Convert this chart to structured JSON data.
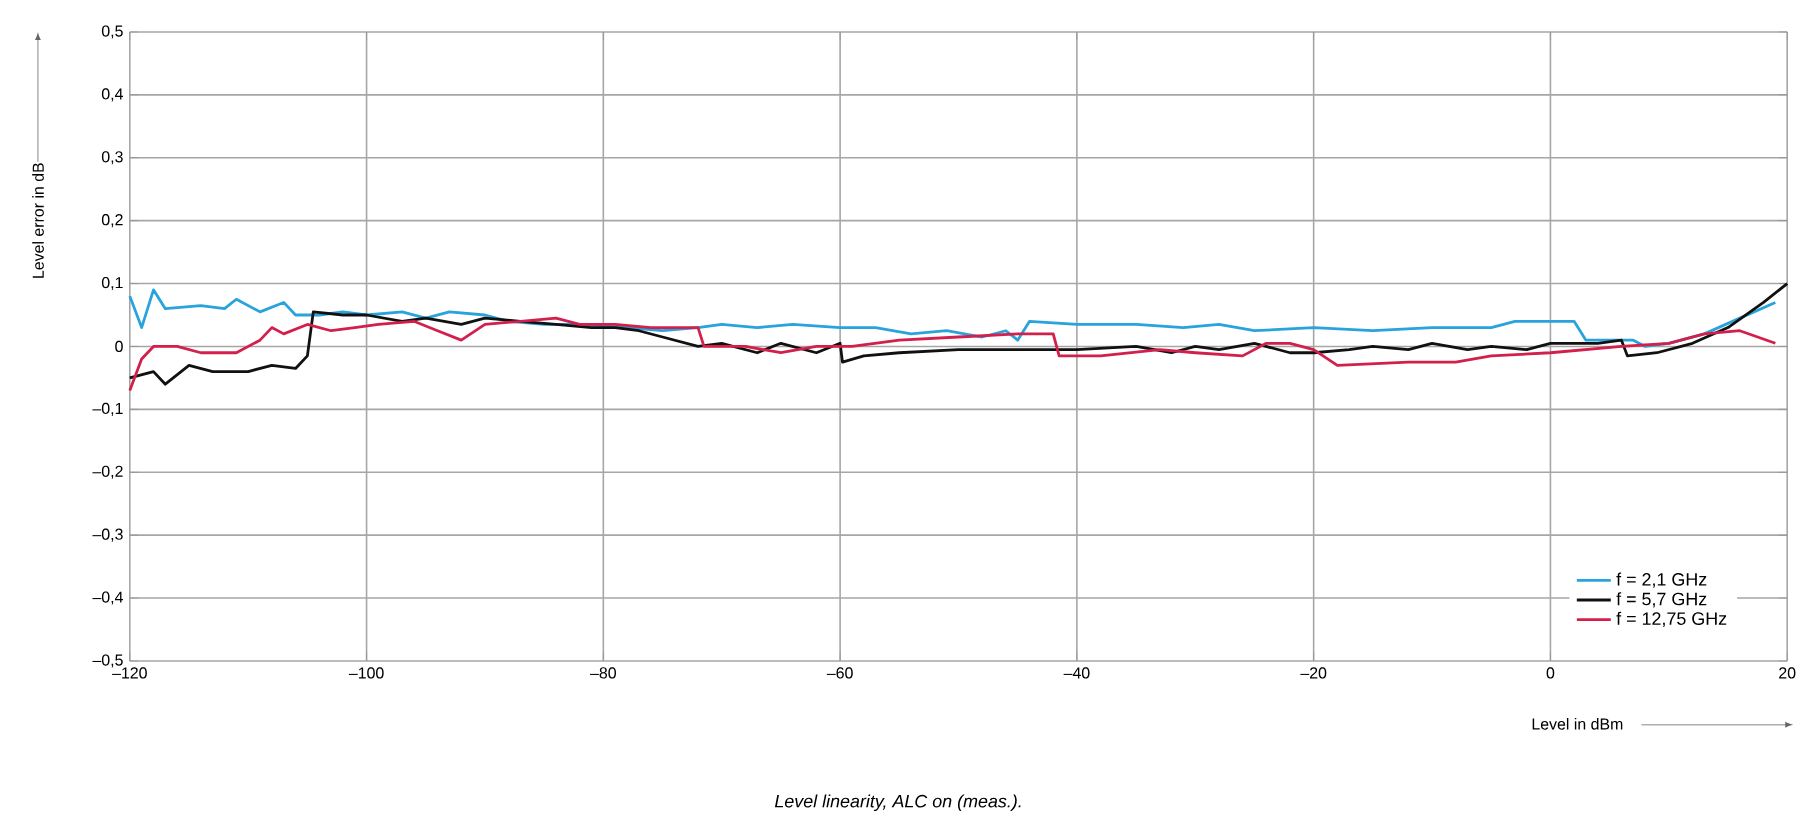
{
  "chart_data": {
    "type": "line",
    "xlabel": "Level in dBm",
    "ylabel": "Level error in dB",
    "annotations": [
      "Level linearity, ALC on (meas.)."
    ],
    "xlim": [
      -120,
      20
    ],
    "xticks": [
      {
        "value": -120,
        "label": "–120"
      },
      {
        "value": -100,
        "label": "–100"
      },
      {
        "value": -80,
        "label": "–80"
      },
      {
        "value": -60,
        "label": "–60"
      },
      {
        "value": -40,
        "label": "–40"
      },
      {
        "value": -20,
        "label": "–20"
      },
      0,
      20
    ],
    "ylim": [
      -0.5,
      0.5
    ],
    "yticks": [
      {
        "value": -0.5,
        "label": "–0,5"
      },
      {
        "value": -0.4,
        "label": "–0,4"
      },
      {
        "value": -0.3,
        "label": "–0,3"
      },
      {
        "value": -0.2,
        "label": "–0,2"
      },
      {
        "value": -0.1,
        "label": "–0,1"
      },
      0,
      {
        "value": 0.1,
        "label": "0,1"
      },
      {
        "value": 0.2,
        "label": "0,2"
      },
      {
        "value": 0.3,
        "label": "0,3"
      },
      {
        "value": 0.4,
        "label": "0,4"
      },
      {
        "value": 0.5,
        "label": "0,5"
      }
    ],
    "grid": true,
    "legend": "bottom right",
    "series": [
      {
        "name": "f = 2,1 GHz",
        "color": "#29a3dc",
        "x": [
          -120,
          -119,
          -118,
          -117,
          -114,
          -112,
          -111,
          -109,
          -107,
          -106,
          -104,
          -102,
          -100,
          -97,
          -95,
          -93,
          -90,
          -88,
          -85,
          -82,
          -78,
          -75,
          -72,
          -70,
          -67,
          -64,
          -60,
          -57,
          -54,
          -51,
          -48,
          -46,
          -45,
          -44,
          -40,
          -35,
          -31,
          -28,
          -25,
          -20,
          -15,
          -10,
          -5,
          -3,
          2,
          3,
          7,
          8,
          10,
          13,
          16,
          19
        ],
        "values": [
          0.08,
          0.03,
          0.09,
          0.06,
          0.065,
          0.06,
          0.075,
          0.055,
          0.07,
          0.05,
          0.05,
          0.055,
          0.05,
          0.055,
          0.045,
          0.055,
          0.05,
          0.04,
          0.035,
          0.035,
          0.03,
          0.025,
          0.03,
          0.035,
          0.03,
          0.035,
          0.03,
          0.03,
          0.02,
          0.025,
          0.015,
          0.025,
          0.01,
          0.04,
          0.035,
          0.035,
          0.03,
          0.035,
          0.025,
          0.03,
          0.025,
          0.03,
          0.03,
          0.04,
          0.04,
          0.01,
          0.01,
          0.0,
          0.005,
          0.02,
          0.045,
          0.07
        ]
      },
      {
        "name": "f = 5,7 GHz",
        "color": "#111111",
        "x": [
          -120,
          -118,
          -117,
          -115,
          -113,
          -110,
          -108,
          -106,
          -105,
          -104.5,
          -102,
          -100,
          -97,
          -95,
          -92,
          -90,
          -87,
          -84,
          -81,
          -79,
          -77,
          -75,
          -72,
          -70,
          -67,
          -65,
          -62,
          -60,
          -59.8,
          -58,
          -55,
          -50,
          -45,
          -40,
          -35,
          -32,
          -30,
          -28,
          -25,
          -22,
          -20,
          -17,
          -15,
          -12,
          -10,
          -7,
          -5,
          -2,
          0,
          4,
          6,
          6.5,
          9,
          12,
          15,
          18,
          20
        ],
        "values": [
          -0.05,
          -0.04,
          -0.06,
          -0.03,
          -0.04,
          -0.04,
          -0.03,
          -0.035,
          -0.015,
          0.055,
          0.05,
          0.05,
          0.04,
          0.045,
          0.035,
          0.045,
          0.04,
          0.035,
          0.03,
          0.03,
          0.025,
          0.015,
          0.0,
          0.005,
          -0.01,
          0.005,
          -0.01,
          0.005,
          -0.025,
          -0.015,
          -0.01,
          -0.005,
          -0.005,
          -0.005,
          0.0,
          -0.01,
          0.0,
          -0.005,
          0.005,
          -0.01,
          -0.01,
          -0.005,
          0.0,
          -0.005,
          0.005,
          -0.005,
          0.0,
          -0.005,
          0.005,
          0.005,
          0.01,
          -0.015,
          -0.01,
          0.005,
          0.03,
          0.07,
          0.1
        ]
      },
      {
        "name": "f = 12,75 GHz",
        "color": "#d21f4b",
        "x": [
          -120,
          -119,
          -118,
          -116,
          -114,
          -111,
          -109,
          -108,
          -107,
          -105,
          -103,
          -101,
          -99,
          -96,
          -94,
          -92,
          -90,
          -87,
          -84,
          -82,
          -79,
          -76,
          -72,
          -71.5,
          -68,
          -65,
          -62,
          -59,
          -55,
          -50,
          -45,
          -42,
          -41.5,
          -38,
          -33,
          -30,
          -26,
          -24,
          -22,
          -20,
          -18,
          -12,
          -8,
          -5,
          0,
          3,
          6,
          10,
          13,
          16,
          19
        ],
        "values": [
          -0.07,
          -0.02,
          0.0,
          0.0,
          -0.01,
          -0.01,
          0.01,
          0.03,
          0.02,
          0.035,
          0.025,
          0.03,
          0.035,
          0.04,
          0.025,
          0.01,
          0.035,
          0.04,
          0.045,
          0.035,
          0.035,
          0.03,
          0.03,
          0.0,
          0.0,
          -0.01,
          0.0,
          0.0,
          0.01,
          0.015,
          0.02,
          0.02,
          -0.015,
          -0.015,
          -0.005,
          -0.01,
          -0.015,
          0.005,
          0.005,
          -0.005,
          -0.03,
          -0.025,
          -0.025,
          -0.015,
          -0.01,
          -0.005,
          0.0,
          0.005,
          0.02,
          0.025,
          0.005
        ]
      }
    ]
  }
}
